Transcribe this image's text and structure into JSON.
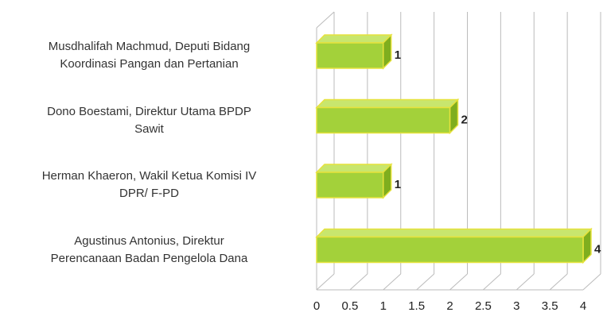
{
  "chart_data": {
    "type": "bar3d",
    "categories": [
      "Musdhalifah Machmud, Deputi Bidang\nKoordinasi Pangan dan Pertanian",
      "Dono Boestami, Direktur Utama BPDP\nSawit",
      "Herman Khaeron, Wakil Ketua Komisi IV\nDPR/ F-PD",
      "Agustinus Antonius, Direktur\nPerencanaan Badan Pengelola Dana"
    ],
    "values": [
      1,
      2,
      1,
      4
    ],
    "color": "#a3d13a",
    "xlim": [
      0,
      4
    ],
    "xticks": [
      0,
      0.5,
      1,
      1.5,
      2,
      2.5,
      3,
      3.5,
      4
    ],
    "grid": true
  }
}
